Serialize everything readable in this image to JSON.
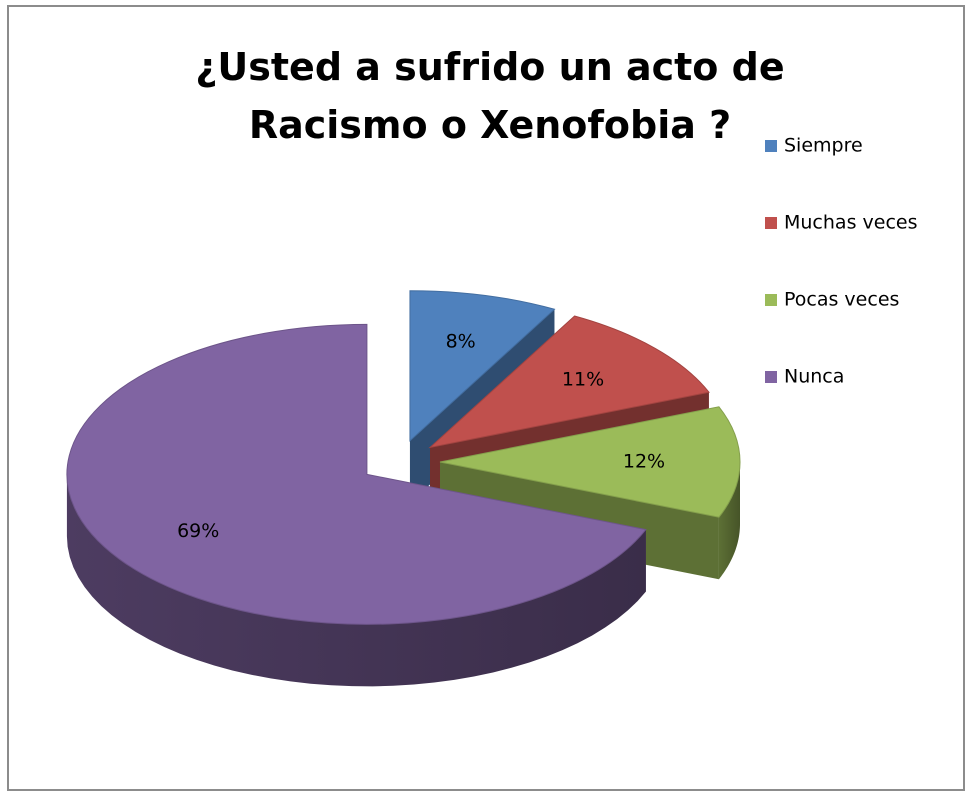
{
  "chart_data": {
    "type": "pie",
    "title": "¿Usted a sufrido un acto de Racismo o Xenofobia ?",
    "categories": [
      "Siempre",
      "Muchas veces",
      "Pocas veces",
      "Nunca"
    ],
    "values": [
      8,
      11,
      12,
      69
    ],
    "value_labels": [
      "8%",
      "11%",
      "12%",
      "69%"
    ],
    "colors": [
      "#4f81bd",
      "#c0504d",
      "#9bbb59",
      "#8064a2"
    ],
    "legend": "right"
  }
}
